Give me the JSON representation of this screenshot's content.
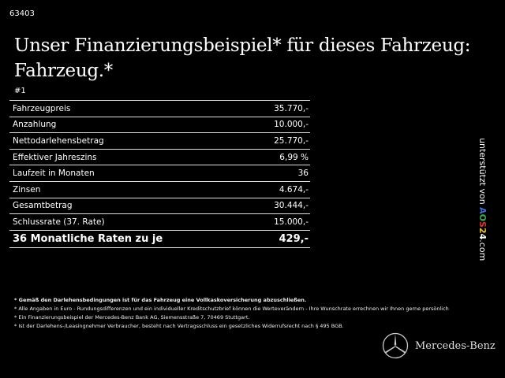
{
  "listing_id": "63403",
  "title": "Unser Finanzierungsbeispiel* für dieses Fahrzeug: Fahrzeug.*",
  "example_number": "#1",
  "rows": [
    {
      "label": "Fahrzeugpreis",
      "value": "35.770,-"
    },
    {
      "label": "Anzahlung",
      "value": "10.000,-"
    },
    {
      "label": "Nettodarlehensbetrag",
      "value": "25.770,-"
    },
    {
      "label": "Effektiver Jahreszins",
      "value": "6,99 %"
    },
    {
      "label": "Laufzeit in Monaten",
      "value": "36"
    },
    {
      "label": "Zinsen",
      "value": "4.674,-"
    },
    {
      "label": "Gesamtbetrag",
      "value": "30.444,-"
    },
    {
      "label": "Schlussrate (37. Rate)",
      "value": "15.000,-"
    }
  ],
  "total": {
    "label": "36 Monatliche Raten zu je",
    "value": "429,-"
  },
  "footnotes": [
    "* Gemäß den Darlehensbedingungen ist für das Fahrzeug eine Vollkaskoversicherung abzuschließen.",
    "* Alle Angaben in Euro - Rundungsdifferenzen und ein individueller Kreditschutzbrief können die Werteverändern - Ihre Wunschrate errechnen wir Ihnen gerne persönlich",
    "* Ein Finanzierungsbeispiel der Mercedes-Benz Bank AG, Siemensstraße 7, 70469 Stuttgart.",
    "* Ist der Darlehens-/Leasingnehmer Verbraucher, besteht nach Vertragsschluss ein gesetzliches Widerrufsrecht nach § 495 BGB."
  ],
  "side": {
    "prefix": "unterstützt von ",
    "brand_letters": [
      "A",
      "O",
      "S",
      "2",
      "4"
    ],
    "brand_colors": [
      "#3a6fd8",
      "#3cb043",
      "#e03030",
      "#f0c020",
      "#ffffff"
    ],
    "suffix": ".com"
  },
  "logo": {
    "icon": "mercedes-star-icon",
    "text": "Mercedes-Benz"
  }
}
